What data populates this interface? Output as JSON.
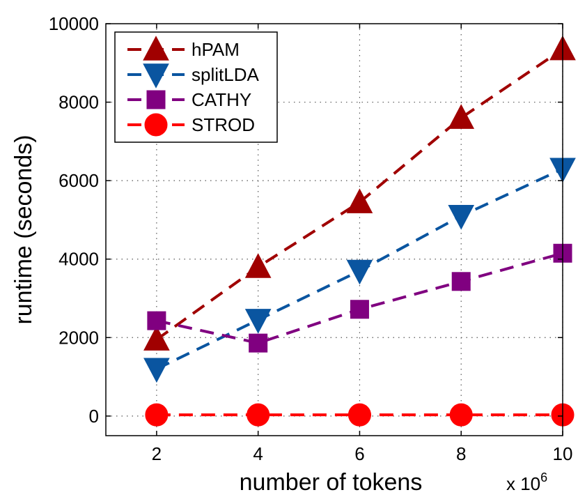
{
  "chart_data": {
    "type": "line",
    "title": "",
    "xlabel": "number of tokens",
    "ylabel": "runtime (seconds)",
    "x_multiplier_label": "x 10",
    "x_multiplier_exp": "6",
    "x": [
      2,
      4,
      6,
      8,
      10
    ],
    "xlim": [
      1,
      10
    ],
    "ylim": [
      -500,
      10000
    ],
    "xticks": [
      "2",
      "4",
      "6",
      "8",
      "10"
    ],
    "yticks": [
      "0",
      "2000",
      "4000",
      "6000",
      "8000",
      "10000"
    ],
    "grid": true,
    "legend_position": "top-left",
    "series": [
      {
        "name": "hPAM",
        "color": "#a00000",
        "marker": "triangle-up",
        "values": [
          1950,
          3800,
          5450,
          7600,
          9350
        ]
      },
      {
        "name": "splitLDA",
        "color": "#0a55a0",
        "marker": "triangle-down",
        "values": [
          1200,
          2450,
          3700,
          5100,
          6300
        ]
      },
      {
        "name": "CATHY",
        "color": "#800080",
        "marker": "square",
        "values": [
          2430,
          1860,
          2720,
          3430,
          4150
        ]
      },
      {
        "name": "STROD",
        "color": "#ff0000",
        "marker": "circle",
        "values": [
          30,
          30,
          30,
          30,
          30
        ]
      }
    ]
  }
}
